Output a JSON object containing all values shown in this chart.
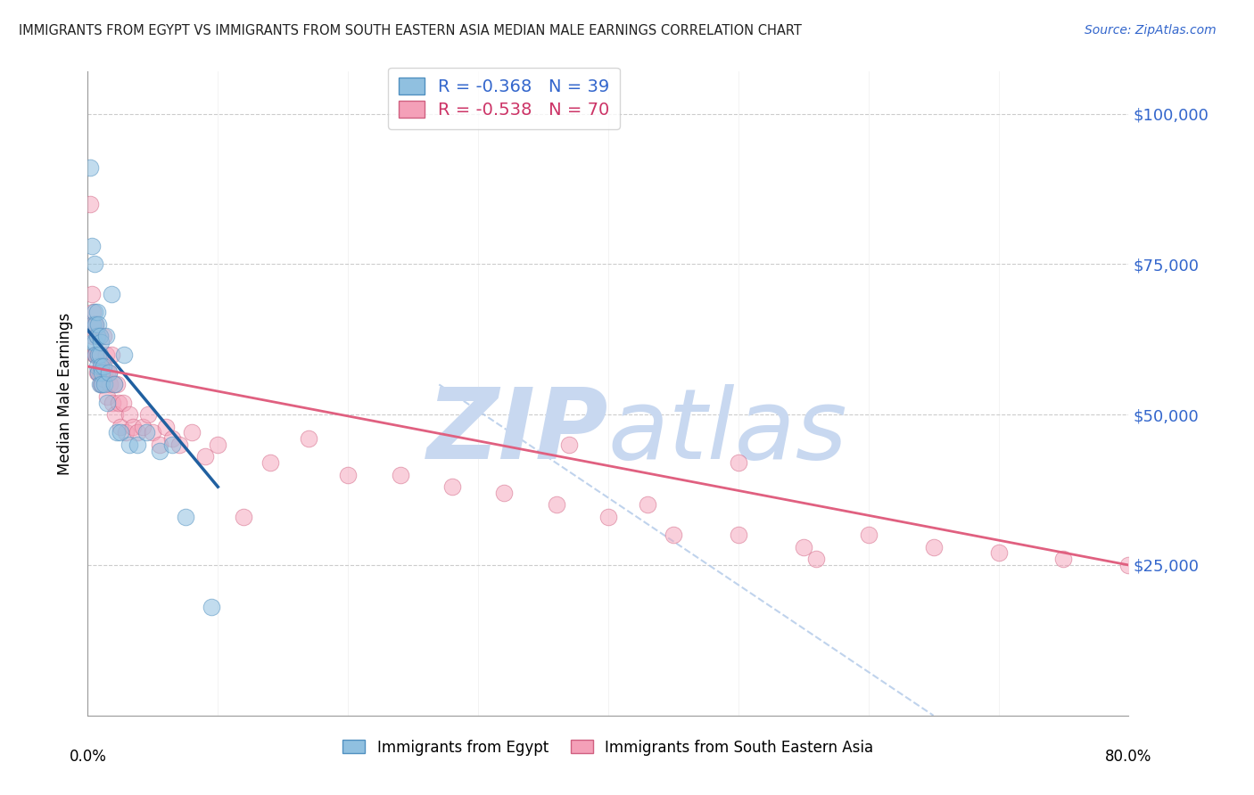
{
  "title": "IMMIGRANTS FROM EGYPT VS IMMIGRANTS FROM SOUTH EASTERN ASIA MEDIAN MALE EARNINGS CORRELATION CHART",
  "source": "Source: ZipAtlas.com",
  "ylabel": "Median Male Earnings",
  "color_egypt": "#90c0e0",
  "color_sea": "#f4a0b8",
  "color_egypt_edge": "#5090c0",
  "color_sea_edge": "#d06080",
  "color_egypt_line": "#2060a0",
  "color_sea_line": "#e06080",
  "color_dash": "#b0c8e8",
  "watermark_zip": "ZIP",
  "watermark_atlas": "atlas",
  "watermark_color": "#c8d8f0",
  "R_egypt": "-0.368",
  "N_egypt": "39",
  "R_sea": "-0.538",
  "N_sea": "70",
  "legend_egypt_label": "Immigrants from Egypt",
  "legend_sea_label": "Immigrants from South Eastern Asia",
  "xmin": 0.0,
  "xmax": 0.8,
  "ymin": 0,
  "ymax": 107000,
  "egypt_x": [
    0.002,
    0.003,
    0.004,
    0.004,
    0.005,
    0.005,
    0.005,
    0.006,
    0.006,
    0.007,
    0.007,
    0.007,
    0.008,
    0.008,
    0.008,
    0.009,
    0.009,
    0.009,
    0.01,
    0.01,
    0.011,
    0.011,
    0.012,
    0.013,
    0.014,
    0.015,
    0.016,
    0.018,
    0.02,
    0.022,
    0.025,
    0.028,
    0.032,
    0.038,
    0.045,
    0.055,
    0.065,
    0.075,
    0.095
  ],
  "egypt_y": [
    91000,
    78000,
    65000,
    62000,
    75000,
    67000,
    62000,
    65000,
    60000,
    67000,
    63000,
    58000,
    65000,
    60000,
    57000,
    63000,
    60000,
    55000,
    62000,
    58000,
    57000,
    55000,
    58000,
    55000,
    63000,
    52000,
    57000,
    70000,
    55000,
    47000,
    47000,
    60000,
    45000,
    45000,
    47000,
    44000,
    45000,
    33000,
    18000
  ],
  "sea_x": [
    0.002,
    0.003,
    0.004,
    0.004,
    0.005,
    0.005,
    0.006,
    0.006,
    0.007,
    0.007,
    0.007,
    0.008,
    0.008,
    0.009,
    0.009,
    0.01,
    0.01,
    0.011,
    0.011,
    0.012,
    0.012,
    0.013,
    0.014,
    0.015,
    0.015,
    0.016,
    0.017,
    0.018,
    0.019,
    0.02,
    0.021,
    0.022,
    0.024,
    0.025,
    0.027,
    0.029,
    0.032,
    0.035,
    0.038,
    0.042,
    0.046,
    0.05,
    0.055,
    0.06,
    0.065,
    0.07,
    0.08,
    0.09,
    0.1,
    0.12,
    0.14,
    0.17,
    0.2,
    0.24,
    0.28,
    0.32,
    0.36,
    0.4,
    0.45,
    0.5,
    0.55,
    0.6,
    0.65,
    0.7,
    0.75,
    0.8,
    0.37,
    0.43,
    0.5,
    0.56
  ],
  "sea_y": [
    85000,
    70000,
    67000,
    63000,
    65000,
    60000,
    65000,
    60000,
    63000,
    60000,
    57000,
    60000,
    57000,
    63000,
    57000,
    58000,
    55000,
    58000,
    55000,
    63000,
    56000,
    57000,
    60000,
    57000,
    53000,
    57000,
    55000,
    60000,
    52000,
    55000,
    50000,
    55000,
    52000,
    48000,
    52000,
    47000,
    50000,
    48000,
    47000,
    48000,
    50000,
    47000,
    45000,
    48000,
    46000,
    45000,
    47000,
    43000,
    45000,
    33000,
    42000,
    46000,
    40000,
    40000,
    38000,
    37000,
    35000,
    33000,
    30000,
    30000,
    28000,
    30000,
    28000,
    27000,
    26000,
    25000,
    45000,
    35000,
    42000,
    26000
  ]
}
